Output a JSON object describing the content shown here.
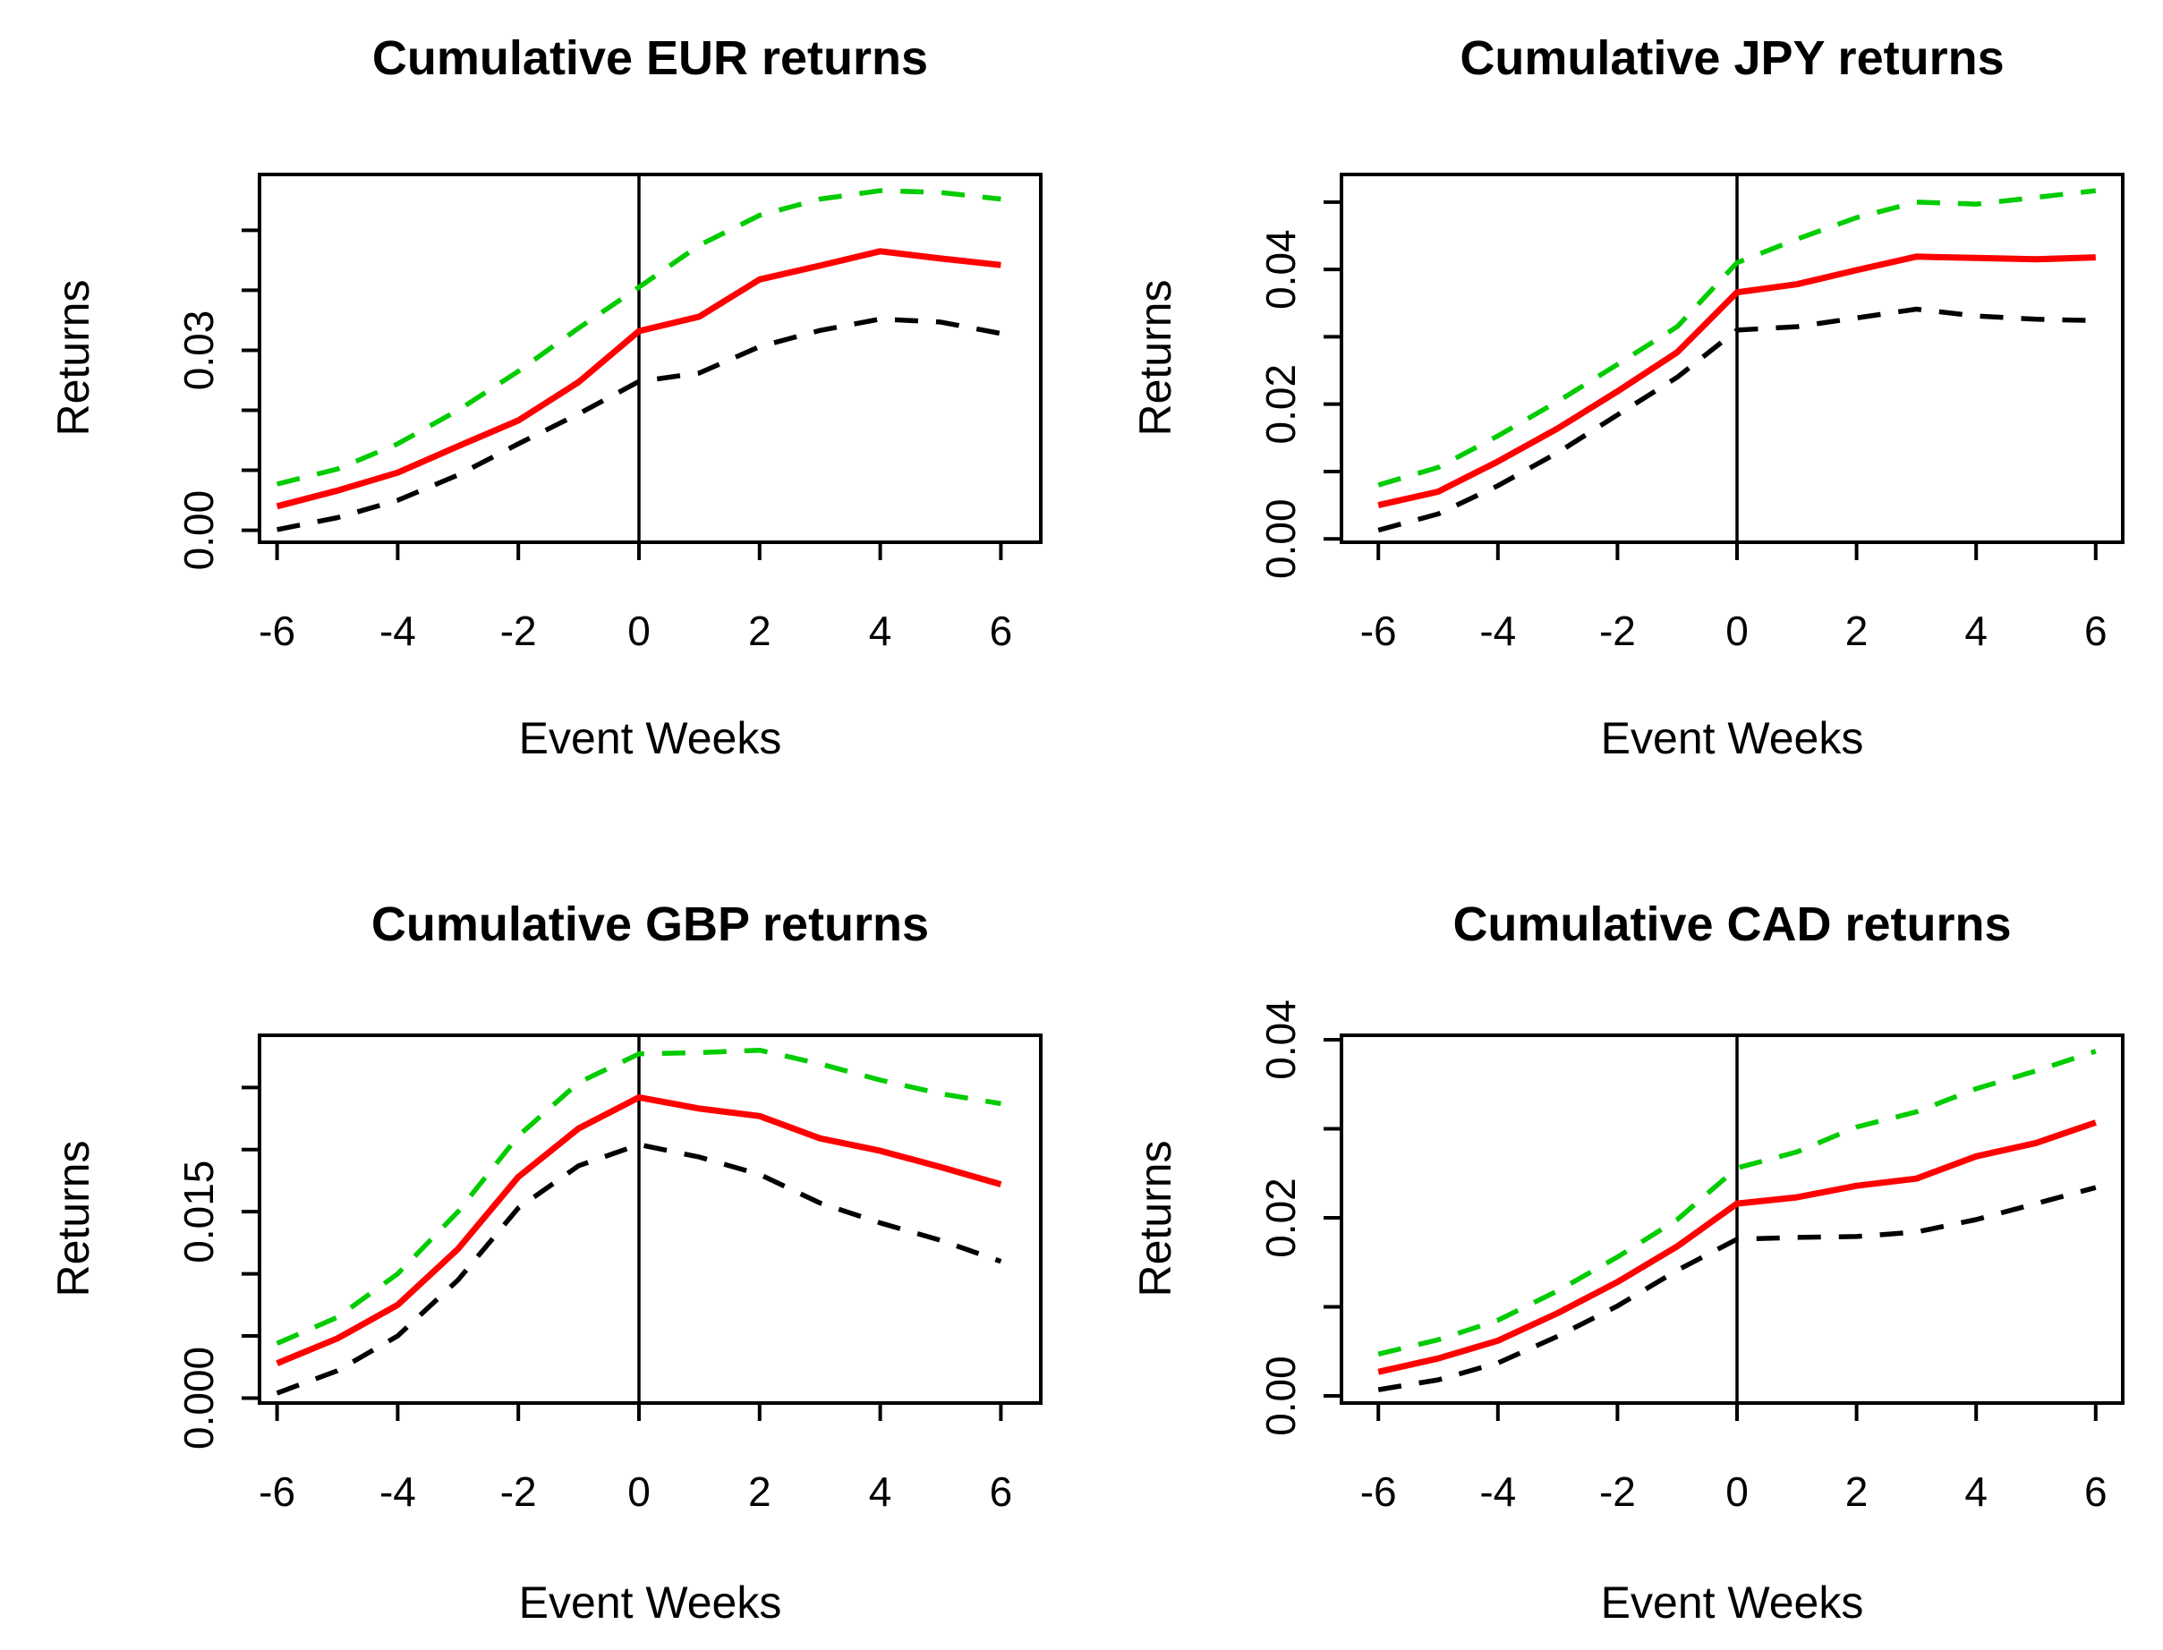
{
  "figure": {
    "background": "#ffffff",
    "ylabel": "Returns",
    "xlabel": "Event Weeks",
    "line_colors": {
      "upper_band": "#00CC00",
      "mean": "#FF0000",
      "lower_band": "#000000",
      "axis": "#000000"
    }
  },
  "chart_data": [
    {
      "type": "line",
      "title": "Cumulative EUR returns",
      "xlabel": "Event Weeks",
      "ylabel": "Returns",
      "x": [
        -6,
        -5,
        -4,
        -3,
        -2,
        -1,
        0,
        1,
        2,
        3,
        4,
        5,
        6
      ],
      "xtick_labels": [
        "-6",
        "-4",
        "-2",
        "0",
        "2",
        "4",
        "6"
      ],
      "xticks": [
        -6,
        -4,
        -2,
        0,
        2,
        4,
        6
      ],
      "yticks": [
        {
          "v": 0.0,
          "label": "0.00"
        },
        {
          "v": 0.01,
          "label": ""
        },
        {
          "v": 0.02,
          "label": ""
        },
        {
          "v": 0.03,
          "label": "0.03"
        },
        {
          "v": 0.04,
          "label": ""
        },
        {
          "v": 0.05,
          "label": ""
        }
      ],
      "ylim": [
        -0.002,
        0.0593
      ],
      "vline_x": 0,
      "grid": false,
      "legend": "none",
      "series": [
        {
          "name": "upper_band",
          "style": "dashed",
          "color": "#00CC00",
          "values": [
            0.0077,
            0.0102,
            0.0144,
            0.02,
            0.0265,
            0.0337,
            0.0405,
            0.0475,
            0.0525,
            0.0552,
            0.0566,
            0.0563,
            0.0552
          ]
        },
        {
          "name": "lower_band",
          "style": "dashed",
          "color": "#000000",
          "values": [
            0.0001,
            0.0021,
            0.005,
            0.0092,
            0.0144,
            0.0194,
            0.0248,
            0.0262,
            0.0306,
            0.0333,
            0.0352,
            0.0347,
            0.0328
          ]
        },
        {
          "name": "mean",
          "style": "solid",
          "color": "#FF0000",
          "values": [
            0.004,
            0.0066,
            0.0096,
            0.014,
            0.0183,
            0.0247,
            0.0332,
            0.0356,
            0.0418,
            0.0441,
            0.0465,
            0.0453,
            0.0442
          ]
        }
      ]
    },
    {
      "type": "line",
      "title": "Cumulative JPY returns",
      "xlabel": "Event Weeks",
      "ylabel": "Returns",
      "x": [
        -6,
        -5,
        -4,
        -3,
        -2,
        -1,
        0,
        1,
        2,
        3,
        4,
        5,
        6
      ],
      "xtick_labels": [
        "-6",
        "-4",
        "-2",
        "0",
        "2",
        "4",
        "6"
      ],
      "xticks": [
        -6,
        -4,
        -2,
        0,
        2,
        4,
        6
      ],
      "yticks": [
        {
          "v": 0.0,
          "label": "0.00"
        },
        {
          "v": 0.01,
          "label": ""
        },
        {
          "v": 0.02,
          "label": "0.02"
        },
        {
          "v": 0.03,
          "label": ""
        },
        {
          "v": 0.04,
          "label": "0.04"
        },
        {
          "v": 0.05,
          "label": ""
        }
      ],
      "ylim": [
        -0.0005,
        0.0541
      ],
      "vline_x": 0,
      "grid": false,
      "legend": "none",
      "series": [
        {
          "name": "upper_band",
          "style": "dashed",
          "color": "#00CC00",
          "values": [
            0.008,
            0.0106,
            0.0153,
            0.0204,
            0.0259,
            0.0315,
            0.041,
            0.0445,
            0.0477,
            0.05,
            0.0497,
            0.0507,
            0.0517
          ]
        },
        {
          "name": "lower_band",
          "style": "dashed",
          "color": "#000000",
          "values": [
            0.0013,
            0.0037,
            0.0079,
            0.0128,
            0.0184,
            0.024,
            0.031,
            0.0315,
            0.0328,
            0.0341,
            0.0331,
            0.0326,
            0.0324
          ]
        },
        {
          "name": "mean",
          "style": "solid",
          "color": "#FF0000",
          "values": [
            0.005,
            0.007,
            0.0115,
            0.0164,
            0.0219,
            0.0277,
            0.0366,
            0.0378,
            0.0399,
            0.0419,
            0.0417,
            0.0415,
            0.0418
          ]
        }
      ]
    },
    {
      "type": "line",
      "title": "Cumulative GBP returns",
      "xlabel": "Event Weeks",
      "ylabel": "Returns",
      "x": [
        -6,
        -5,
        -4,
        -3,
        -2,
        -1,
        0,
        1,
        2,
        3,
        4,
        5,
        6
      ],
      "xtick_labels": [
        "-6",
        "-4",
        "-2",
        "0",
        "2",
        "4",
        "6"
      ],
      "xticks": [
        -6,
        -4,
        -2,
        0,
        2,
        4,
        6
      ],
      "yticks": [
        {
          "v": 0.0,
          "label": "0.000"
        },
        {
          "v": 0.005,
          "label": ""
        },
        {
          "v": 0.01,
          "label": ""
        },
        {
          "v": 0.015,
          "label": "0.015"
        },
        {
          "v": 0.02,
          "label": ""
        },
        {
          "v": 0.025,
          "label": ""
        }
      ],
      "ylim": [
        -0.0004,
        0.0292
      ],
      "vline_x": 0,
      "grid": false,
      "legend": "none",
      "series": [
        {
          "name": "upper_band",
          "style": "dashed",
          "color": "#00CC00",
          "values": [
            0.0044,
            0.0065,
            0.01,
            0.015,
            0.0211,
            0.0254,
            0.0277,
            0.0278,
            0.028,
            0.0269,
            0.0256,
            0.0245,
            0.0237
          ]
        },
        {
          "name": "lower_band",
          "style": "dashed",
          "color": "#000000",
          "values": [
            0.0004,
            0.0022,
            0.005,
            0.0095,
            0.0153,
            0.0187,
            0.0204,
            0.0194,
            0.018,
            0.0157,
            0.0141,
            0.0127,
            0.011
          ]
        },
        {
          "name": "mean",
          "style": "solid",
          "color": "#FF0000",
          "values": [
            0.0028,
            0.0048,
            0.0075,
            0.012,
            0.0178,
            0.0217,
            0.0242,
            0.0233,
            0.0227,
            0.0209,
            0.0199,
            0.0186,
            0.0172
          ]
        }
      ]
    },
    {
      "type": "line",
      "title": "Cumulative CAD returns",
      "xlabel": "Event Weeks",
      "ylabel": "Returns",
      "x": [
        -6,
        -5,
        -4,
        -3,
        -2,
        -1,
        0,
        1,
        2,
        3,
        4,
        5,
        6
      ],
      "xtick_labels": [
        "-6",
        "-4",
        "-2",
        "0",
        "2",
        "4",
        "6"
      ],
      "xticks": [
        -6,
        -4,
        -2,
        0,
        2,
        4,
        6
      ],
      "yticks": [
        {
          "v": 0.0,
          "label": "0.00"
        },
        {
          "v": 0.01,
          "label": ""
        },
        {
          "v": 0.02,
          "label": "0.02"
        },
        {
          "v": 0.03,
          "label": ""
        },
        {
          "v": 0.04,
          "label": "0.04"
        }
      ],
      "ylim": [
        -0.0008,
        0.0405
      ],
      "vline_x": 0,
      "grid": false,
      "legend": "none",
      "series": [
        {
          "name": "upper_band",
          "style": "dashed",
          "color": "#00CC00",
          "values": [
            0.0047,
            0.0063,
            0.0085,
            0.0118,
            0.0156,
            0.0198,
            0.0256,
            0.0274,
            0.0302,
            0.0319,
            0.0345,
            0.0365,
            0.0387
          ]
        },
        {
          "name": "lower_band",
          "style": "dashed",
          "color": "#000000",
          "values": [
            0.0007,
            0.0018,
            0.0037,
            0.0067,
            0.0101,
            0.0141,
            0.0176,
            0.0178,
            0.0179,
            0.0184,
            0.0198,
            0.0216,
            0.0234
          ]
        },
        {
          "name": "mean",
          "style": "solid",
          "color": "#FF0000",
          "values": [
            0.0027,
            0.0042,
            0.0062,
            0.0093,
            0.0128,
            0.0168,
            0.0216,
            0.0223,
            0.0236,
            0.0244,
            0.0269,
            0.0284,
            0.0307
          ]
        }
      ]
    }
  ]
}
